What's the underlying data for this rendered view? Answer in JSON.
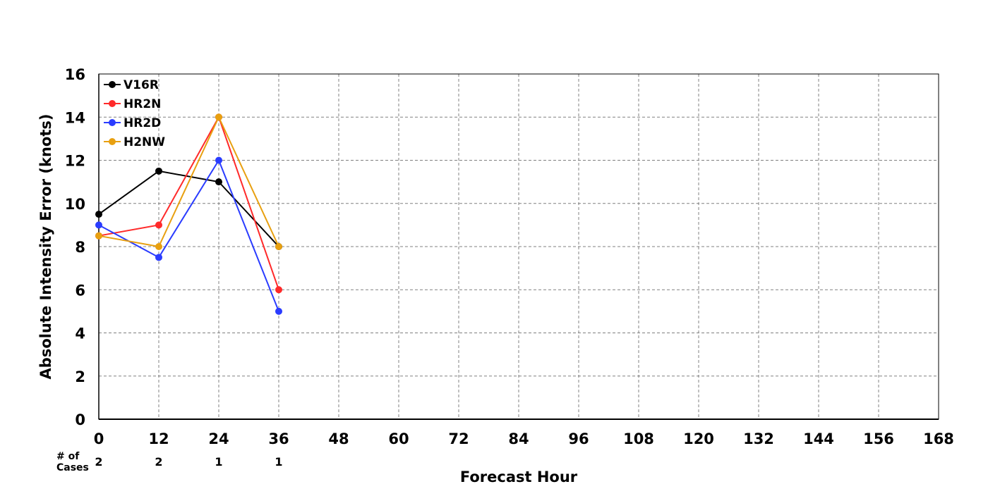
{
  "chart_data": {
    "type": "line",
    "title": "",
    "xlabel": "Forecast Hour",
    "ylabel": "Absolute Intensity Error (knots)",
    "xlim": [
      0,
      168
    ],
    "ylim": [
      0,
      16
    ],
    "x_ticks": [
      0,
      12,
      24,
      36,
      48,
      60,
      72,
      84,
      96,
      108,
      120,
      132,
      144,
      156,
      168
    ],
    "y_ticks": [
      0,
      2,
      4,
      6,
      8,
      10,
      12,
      14,
      16
    ],
    "grid": true,
    "legend_position": "top-left",
    "x": [
      0,
      12,
      24,
      36
    ],
    "series": [
      {
        "name": "V16R",
        "color": "#000000",
        "values": [
          9.5,
          11.5,
          11,
          8
        ]
      },
      {
        "name": "HR2N",
        "color": "#ff2a2a",
        "values": [
          8.5,
          9,
          14,
          6
        ]
      },
      {
        "name": "HR2D",
        "color": "#2a3cff",
        "values": [
          9,
          7.5,
          12,
          5
        ]
      },
      {
        "name": "H2NW",
        "color": "#e8a010",
        "values": [
          8.5,
          8,
          14,
          8
        ]
      }
    ],
    "cases": {
      "label_line1": "# of",
      "label_line2": "Cases",
      "x": [
        0,
        12,
        24,
        36
      ],
      "counts": [
        "2",
        "2",
        "1",
        "1"
      ]
    }
  }
}
